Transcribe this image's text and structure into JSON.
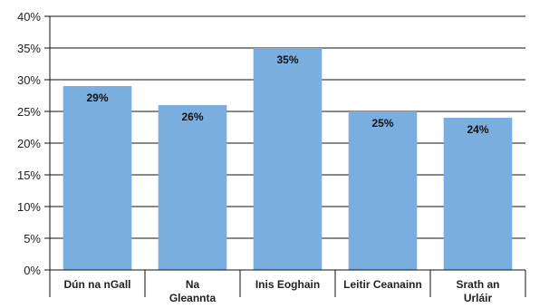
{
  "chart_data": {
    "type": "bar",
    "categories": [
      [
        "Dún na nGall"
      ],
      [
        "Na",
        "Gleannta"
      ],
      [
        "Inis Eoghain"
      ],
      [
        "Leitir Ceanainn"
      ],
      [
        "Srath an",
        "Urláir"
      ]
    ],
    "values": [
      29,
      26,
      35,
      25,
      24
    ],
    "data_labels": [
      "29%",
      "26%",
      "35%",
      "25%",
      "24%"
    ],
    "y_ticks": [
      {
        "value": 0,
        "label": "0%"
      },
      {
        "value": 5,
        "label": "5%"
      },
      {
        "value": 10,
        "label": "10%"
      },
      {
        "value": 15,
        "label": "15%"
      },
      {
        "value": 20,
        "label": "20%"
      },
      {
        "value": 25,
        "label": "25%"
      },
      {
        "value": 30,
        "label": "30%"
      },
      {
        "value": 35,
        "label": "35%"
      },
      {
        "value": 40,
        "label": "40%"
      }
    ],
    "ylim": [
      0,
      40
    ],
    "grid": true,
    "title": "",
    "xlabel": "",
    "ylabel": "",
    "bar_color": "#7aaedf",
    "grid_color": "#111111"
  }
}
